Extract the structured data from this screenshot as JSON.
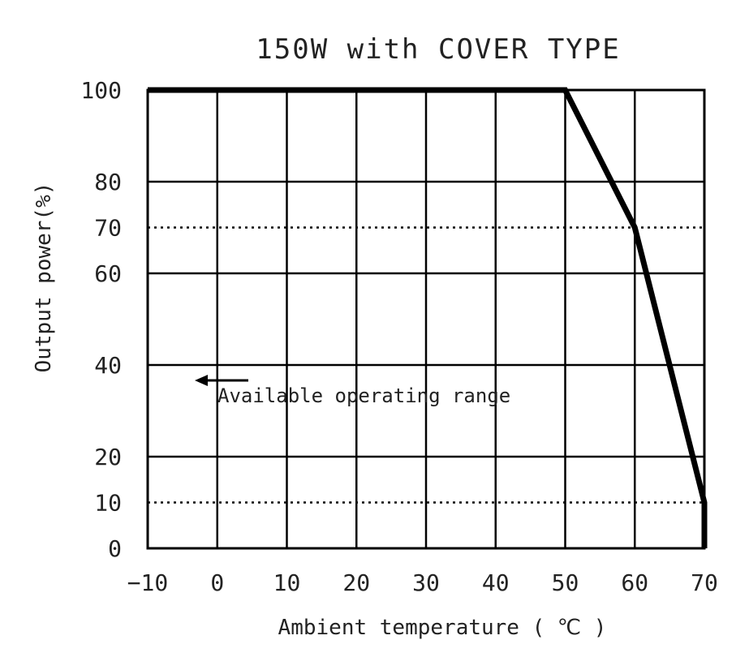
{
  "chart_data": {
    "type": "line",
    "title": "150W with COVER TYPE",
    "xlabel": "Ambient temperature ( ℃ )",
    "ylabel": "Output power(%)",
    "xlim": [
      -10,
      70
    ],
    "ylim": [
      0,
      100
    ],
    "x_ticks": [
      "−10",
      "0",
      "10",
      "20",
      "30",
      "40",
      "50",
      "60",
      "70"
    ],
    "y_ticks": [
      "0",
      "10",
      "20",
      "40",
      "60",
      "70",
      "80",
      "100"
    ],
    "grid": true,
    "series": [
      {
        "points": [
          {
            "x": -10,
            "y": 100
          },
          {
            "x": 50,
            "y": 100
          },
          {
            "x": 60,
            "y": 70
          },
          {
            "x": 70,
            "y": 10
          },
          {
            "x": 70,
            "y": 0
          }
        ]
      }
    ],
    "reference_lines": [
      {
        "y": 70,
        "style": "dotted"
      },
      {
        "y": 10,
        "style": "dotted"
      }
    ],
    "annotation": {
      "text": "Available operating range",
      "arrow_direction": "left"
    }
  }
}
